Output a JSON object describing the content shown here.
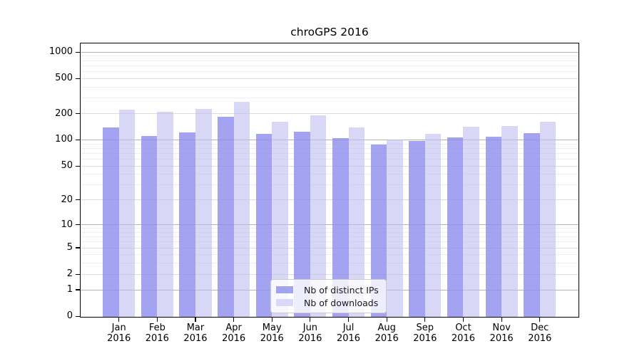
{
  "chart_data": {
    "type": "bar",
    "title": "chroGPS 2016",
    "xlabel": "",
    "ylabel": "",
    "yscale": "log1p",
    "ylim": [
      0,
      1258
    ],
    "yticks": [
      0,
      1,
      2,
      5,
      10,
      20,
      50,
      100,
      200,
      500,
      1000
    ],
    "categories": [
      "Jan 2016",
      "Feb 2016",
      "Mar 2016",
      "Apr 2016",
      "May 2016",
      "Jun 2016",
      "Jul 2016",
      "Aug 2016",
      "Sep 2016",
      "Oct 2016",
      "Nov 2016",
      "Dec 2016"
    ],
    "series": [
      {
        "name": "Nb of distinct IPs",
        "color": "#a3a3ef",
        "fill": "rgba(140,140,238,0.8)",
        "values": [
          138,
          111,
          122,
          183,
          118,
          123,
          105,
          88,
          97,
          106,
          108,
          119
        ]
      },
      {
        "name": "Nb of downloads",
        "color": "#d9d9f7",
        "fill": "rgba(190,190,240,0.6)",
        "values": [
          222,
          211,
          228,
          270,
          160,
          191,
          139,
          100,
          117,
          141,
          143,
          162
        ]
      }
    ],
    "grid": {
      "decade_lines": [
        1,
        10,
        100,
        1000
      ],
      "mid_lines": [
        2,
        5,
        20,
        50,
        200,
        500
      ],
      "minor_lines": [
        3,
        4,
        6,
        7,
        8,
        9,
        30,
        40,
        60,
        70,
        80,
        90,
        300,
        400,
        600,
        700,
        800,
        900
      ],
      "decade_color": "#b4b4b4",
      "mid_color": "#dcdcdc",
      "minor_color": "#eeeeee"
    },
    "legend": {
      "position": "lower center",
      "items": [
        "Nb of distinct IPs",
        "Nb of downloads"
      ]
    }
  }
}
